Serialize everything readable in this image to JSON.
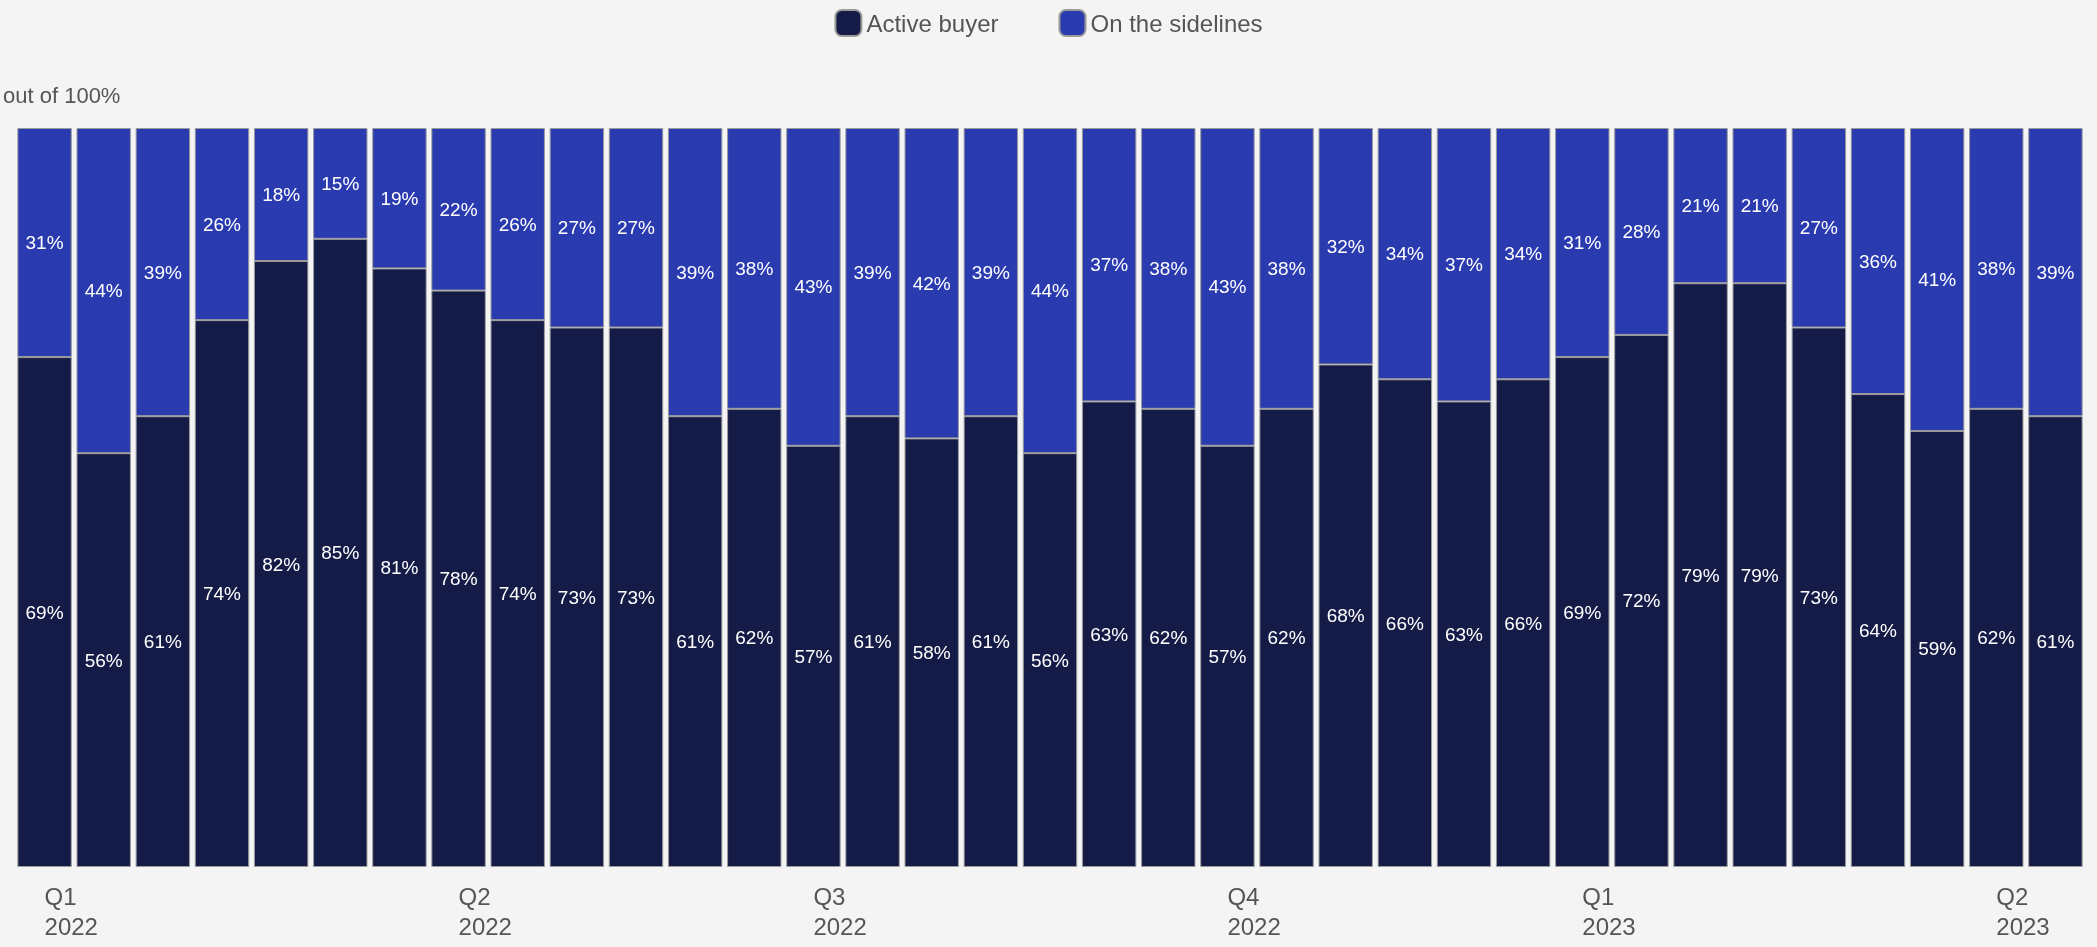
{
  "chart_data": {
    "type": "bar",
    "stacked": true,
    "ylabel": "out of 100%",
    "legend": "top",
    "grid": false,
    "ylim": [
      0,
      100
    ],
    "categories": [
      "Q1\n2022",
      null,
      null,
      null,
      null,
      null,
      null,
      "Q2\n2022",
      null,
      null,
      null,
      null,
      null,
      "Q3\n2022",
      null,
      null,
      null,
      null,
      null,
      null,
      "Q4\n2022",
      null,
      null,
      null,
      null,
      null,
      "Q1\n2023",
      null,
      null,
      null,
      null,
      null,
      null,
      "Q2\n2023",
      null
    ],
    "series": [
      {
        "name": "Active buyer",
        "color": "#151b47",
        "values": [
          69,
          56,
          61,
          74,
          82,
          85,
          81,
          78,
          74,
          73,
          73,
          61,
          62,
          57,
          61,
          58,
          61,
          56,
          63,
          62,
          57,
          62,
          68,
          66,
          63,
          66,
          69,
          72,
          79,
          79,
          73,
          64,
          59,
          62,
          61
        ],
        "value_labels": [
          "69%",
          "56%",
          "61%",
          "74%",
          "82%",
          "85%",
          "81%",
          "78%",
          "74%",
          "73%",
          "73%",
          "61%",
          "62%",
          "57%",
          "61%",
          "58%",
          "61%",
          "56%",
          "63%",
          "62%",
          "57%",
          "62%",
          "68%",
          "66%",
          "63%",
          "66%",
          "69%",
          "72%",
          "79%",
          "79%",
          "73%",
          "64%",
          "59%",
          "62%",
          "61%"
        ]
      },
      {
        "name": "On the sidelines",
        "color": "#2a3bb0",
        "values": [
          31,
          44,
          39,
          26,
          18,
          15,
          19,
          22,
          26,
          27,
          27,
          39,
          38,
          43,
          39,
          42,
          39,
          44,
          37,
          38,
          43,
          38,
          32,
          34,
          37,
          34,
          31,
          28,
          21,
          21,
          27,
          36,
          41,
          38,
          39
        ],
        "value_labels": [
          "31%",
          "44%",
          "39%",
          "26%",
          "18%",
          "15%",
          "19%",
          "22%",
          "26%",
          "27%",
          "27%",
          "39%",
          "38%",
          "43%",
          "39%",
          "42%",
          "39%",
          "44%",
          "37%",
          "38%",
          "43%",
          "38%",
          "32%",
          "34%",
          "37%",
          "34%",
          "31%",
          "28%",
          "21%",
          "21%",
          "27%",
          "36%",
          "41%",
          "38%",
          "39%"
        ]
      }
    ]
  }
}
